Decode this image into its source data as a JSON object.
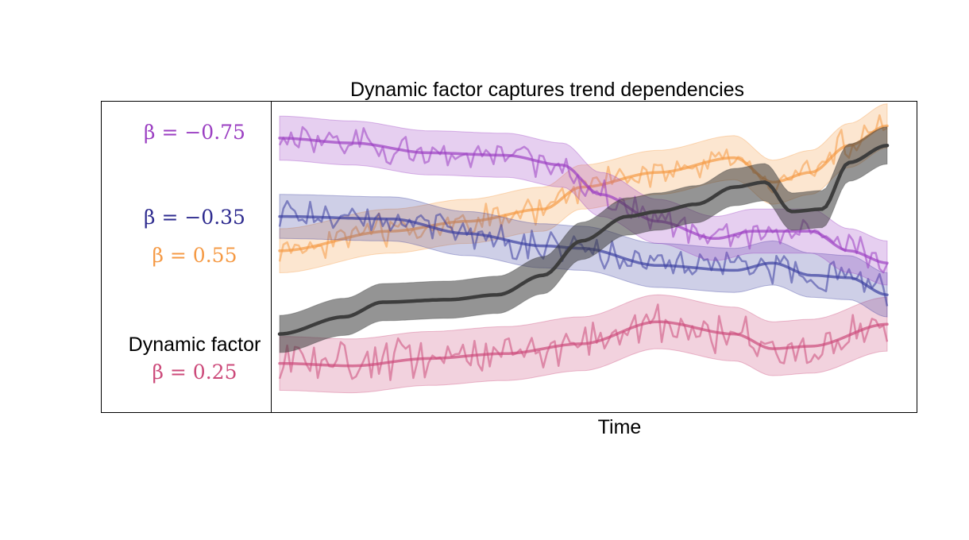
{
  "chart_data": {
    "type": "line",
    "title": "Dynamic factor captures trend dependencies",
    "xlabel": "Time",
    "ylabel": "",
    "x_range": [
      1,
      160
    ],
    "y_range": [
      -3,
      3
    ],
    "grid": false,
    "legend": "left panel",
    "labels": {
      "beta_m075": "β = −0.75",
      "beta_m035": "β = −0.35",
      "beta_055": "β = 0.55",
      "factor": "Dynamic factor",
      "beta_025": "β = 0.25"
    },
    "series": [
      {
        "label_key": "beta_025",
        "color": "#cc4a7a",
        "band": 0.55,
        "trend_knots": [
          [
            1,
            -2.15
          ],
          [
            20,
            -2.2
          ],
          [
            40,
            -2.05
          ],
          [
            60,
            -1.95
          ],
          [
            80,
            -1.75
          ],
          [
            100,
            -1.3
          ],
          [
            120,
            -1.55
          ],
          [
            130,
            -1.85
          ],
          [
            140,
            -1.8
          ],
          [
            160,
            -1.35
          ]
        ],
        "noise": 0.38,
        "seed": 11
      },
      {
        "label_key": "beta_055",
        "color": "#f59a45",
        "band": 0.45,
        "trend_knots": [
          [
            1,
            0.15
          ],
          [
            30,
            0.55
          ],
          [
            50,
            0.75
          ],
          [
            70,
            1.0
          ],
          [
            80,
            1.45
          ],
          [
            100,
            1.75
          ],
          [
            120,
            2.05
          ],
          [
            130,
            1.55
          ],
          [
            140,
            1.75
          ],
          [
            150,
            2.3
          ],
          [
            160,
            2.7
          ]
        ],
        "noise": 0.3,
        "seed": 23
      },
      {
        "label_key": "beta_m035",
        "color": "#3b3ea0",
        "band": 0.45,
        "trend_knots": [
          [
            1,
            0.85
          ],
          [
            30,
            0.8
          ],
          [
            50,
            0.5
          ],
          [
            70,
            0.25
          ],
          [
            80,
            0.2
          ],
          [
            100,
            -0.15
          ],
          [
            120,
            -0.25
          ],
          [
            130,
            -0.1
          ],
          [
            140,
            -0.35
          ],
          [
            150,
            -0.4
          ],
          [
            160,
            -0.75
          ]
        ],
        "noise": 0.33,
        "seed": 37
      },
      {
        "label_key": "beta_m075",
        "color": "#9b3fc2",
        "band": 0.45,
        "trend_knots": [
          [
            1,
            2.45
          ],
          [
            20,
            2.35
          ],
          [
            40,
            2.15
          ],
          [
            60,
            2.1
          ],
          [
            75,
            1.9
          ],
          [
            85,
            1.3
          ],
          [
            100,
            0.75
          ],
          [
            115,
            0.4
          ],
          [
            125,
            0.55
          ],
          [
            140,
            0.55
          ],
          [
            150,
            0.15
          ],
          [
            160,
            -0.1
          ]
        ],
        "noise": 0.28,
        "seed": 53
      },
      {
        "label_key": "factor",
        "color": "#3d3d3d",
        "band": 0.38,
        "trend_knots": [
          [
            1,
            -1.55
          ],
          [
            18,
            -1.2
          ],
          [
            28,
            -0.9
          ],
          [
            45,
            -0.85
          ],
          [
            58,
            -0.75
          ],
          [
            70,
            -0.35
          ],
          [
            80,
            0.35
          ],
          [
            92,
            0.85
          ],
          [
            100,
            0.95
          ],
          [
            110,
            1.1
          ],
          [
            120,
            1.45
          ],
          [
            128,
            1.55
          ],
          [
            135,
            0.95
          ],
          [
            143,
            1.0
          ],
          [
            150,
            1.95
          ],
          [
            160,
            2.3
          ]
        ],
        "noise": 0,
        "seed": 0
      }
    ]
  }
}
